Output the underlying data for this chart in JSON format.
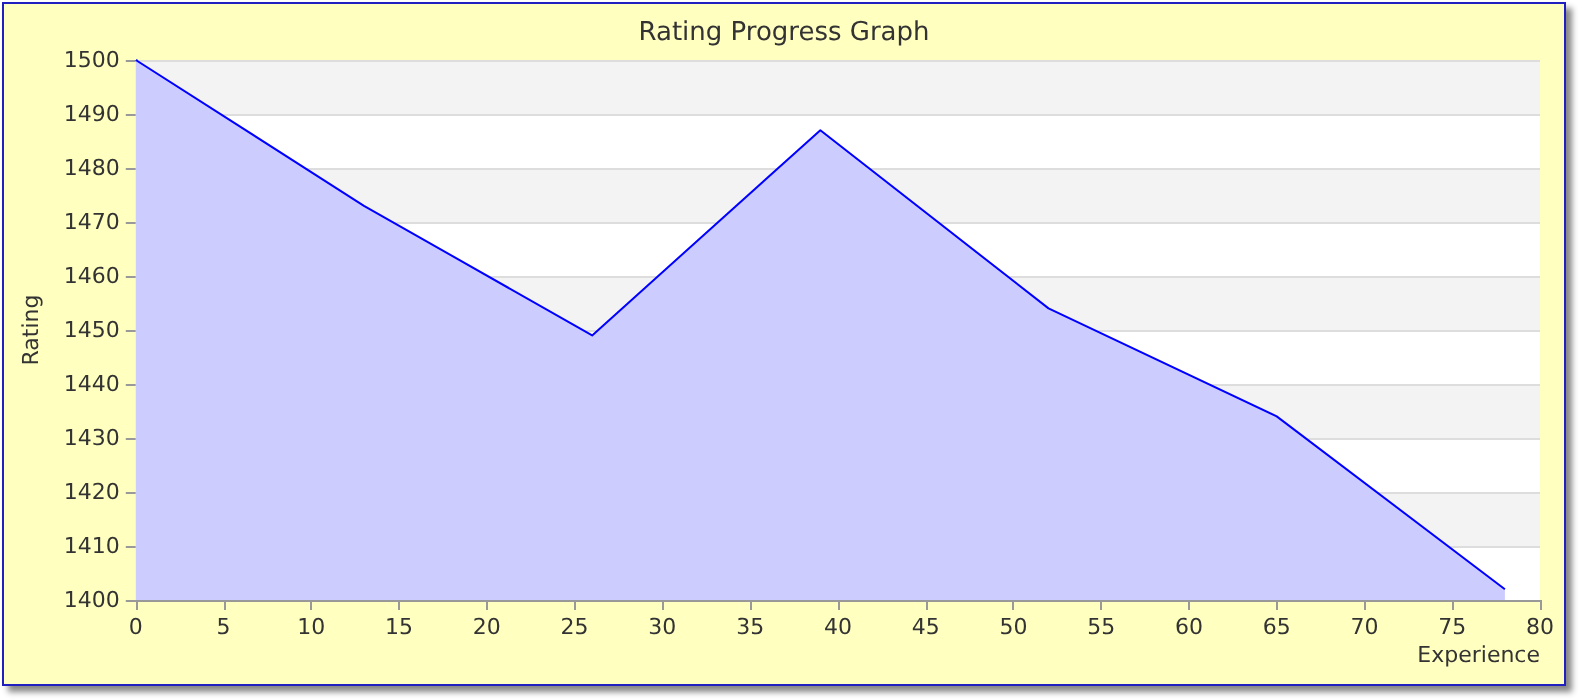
{
  "chart_data": {
    "type": "area",
    "title": "Rating Progress Graph",
    "xlabel": "Experience",
    "ylabel": "Rating",
    "x": [
      0,
      13,
      26,
      39,
      52,
      65,
      78
    ],
    "series": [
      {
        "color": "#0000ff",
        "values": [
          1500,
          1473,
          1449,
          1487,
          1454,
          1434,
          1402
        ]
      }
    ],
    "xlim": [
      0,
      80
    ],
    "xticks": [
      0,
      5,
      10,
      15,
      20,
      25,
      30,
      35,
      40,
      45,
      50,
      55,
      60,
      65,
      70,
      75,
      80
    ],
    "ylim": [
      1400,
      1500
    ],
    "yticks": [
      1400,
      1410,
      1420,
      1430,
      1440,
      1450,
      1460,
      1470,
      1480,
      1490,
      1500
    ],
    "grid": "y",
    "marker": "none"
  }
}
